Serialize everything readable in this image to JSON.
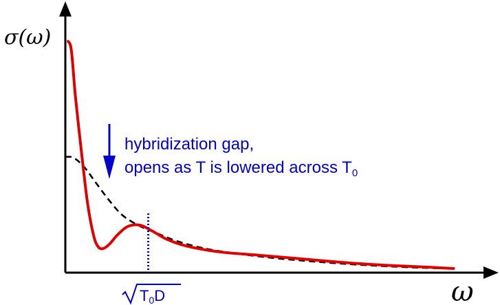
{
  "chart_data": {
    "type": "line",
    "title": "",
    "xlabel": "ω",
    "ylabel": "σ(ω)",
    "xlim": [
      0,
      1
    ],
    "ylim": [
      0,
      1
    ],
    "grid": false,
    "legend": "none",
    "series": [
      {
        "style": "solid",
        "color": "#e00000",
        "x": [
          0.007,
          0.015,
          0.025,
          0.04,
          0.055,
          0.07,
          0.082,
          0.095,
          0.11,
          0.13,
          0.155,
          0.185,
          0.215,
          0.25,
          0.3,
          0.38,
          0.48,
          0.58,
          0.68,
          0.78,
          0.88,
          0.96
        ],
        "y": [
          1.0,
          0.96,
          0.76,
          0.52,
          0.3,
          0.16,
          0.11,
          0.105,
          0.125,
          0.165,
          0.2,
          0.205,
          0.18,
          0.145,
          0.115,
          0.09,
          0.075,
          0.06,
          0.045,
          0.033,
          0.025,
          0.018
        ]
      },
      {
        "style": "dashed",
        "color": "#000000",
        "x": [
          0.0,
          0.015,
          0.03,
          0.05,
          0.075,
          0.105,
          0.14,
          0.18,
          0.22,
          0.27,
          0.33,
          0.4,
          0.5,
          0.6,
          0.7,
          0.8,
          0.9,
          0.96
        ],
        "y": [
          0.5,
          0.5,
          0.485,
          0.45,
          0.39,
          0.32,
          0.25,
          0.205,
          0.175,
          0.14,
          0.11,
          0.088,
          0.066,
          0.05,
          0.037,
          0.027,
          0.02,
          0.018
        ]
      }
    ],
    "annotations": {
      "gap_line1": "hybridization gap,",
      "gap_line2_prefix": "opens as T is lowered across T",
      "gap_line2_sub": "0",
      "marker_x": 0.205,
      "marker_T": "T",
      "marker_sub": "0",
      "marker_D": "D",
      "annotation_color": "#0000cc"
    }
  }
}
